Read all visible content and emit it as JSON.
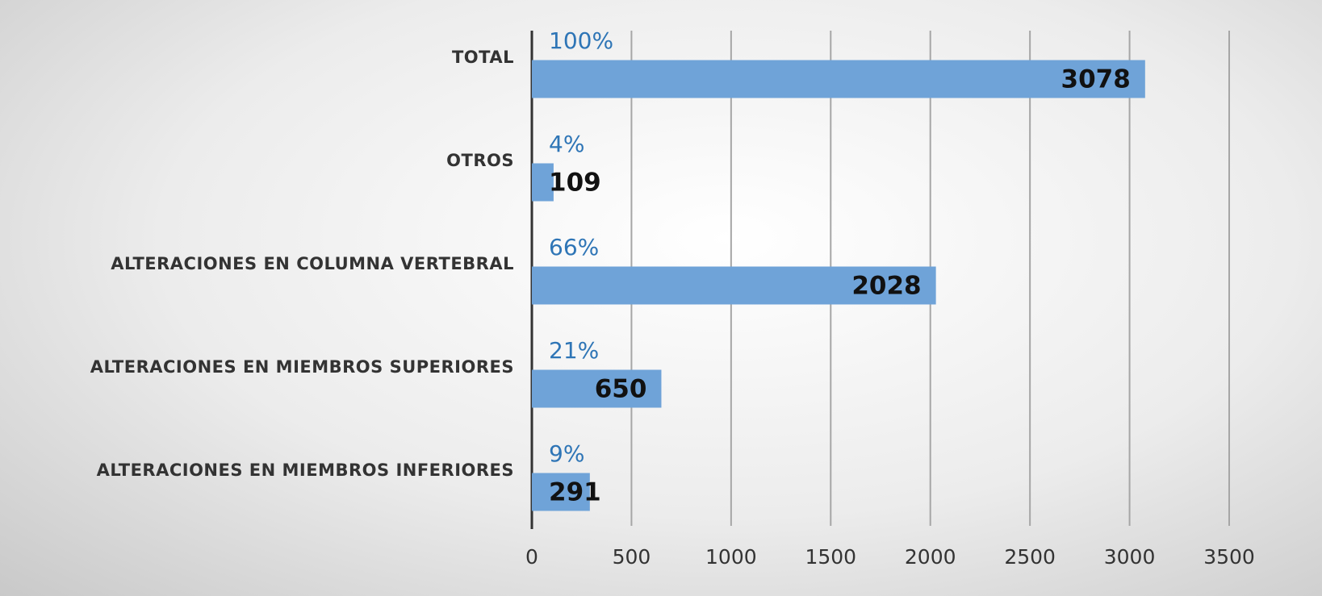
{
  "chart_data": {
    "type": "hbar",
    "categories": [
      "TOTAL",
      "OTROS",
      "ALTERACIONES EN COLUMNA VERTEBRAL",
      "ALTERACIONES EN MIEMBROS SUPERIORES",
      "ALTERACIONES EN MIEMBROS INFERIORES"
    ],
    "values": [
      3078,
      109,
      2028,
      650,
      291
    ],
    "percent_labels": [
      "100%",
      "4%",
      "66%",
      "21%",
      "9%"
    ],
    "color": "#6fa3d8",
    "xlim": [
      0,
      3500
    ],
    "xticks": [
      0,
      500,
      1000,
      1500,
      2000,
      2500,
      3000,
      3500
    ],
    "grid": true
  }
}
